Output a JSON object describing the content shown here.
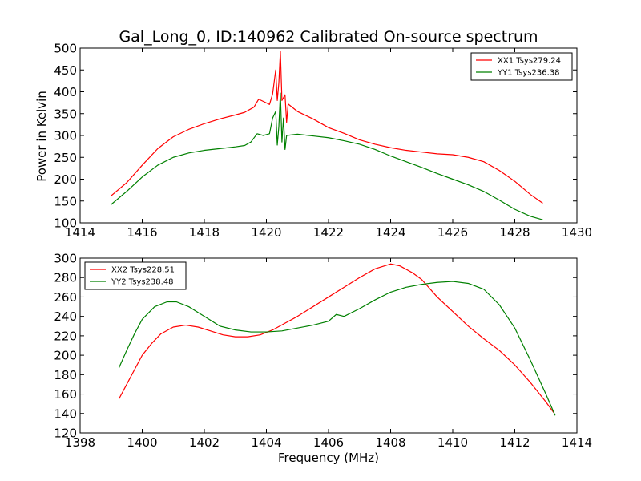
{
  "figure": {
    "title": "Gal_Long_0, ID:140962 Calibrated On-source spectrum",
    "xlabel": "Frequency (MHz)",
    "ylabel": "Power in Kelvin"
  },
  "chart_data": [
    {
      "type": "line",
      "title": "Gal_Long_0, ID:140962 Calibrated On-source spectrum",
      "xlabel": "",
      "ylabel": "Power in Kelvin",
      "xlim": [
        1414,
        1430
      ],
      "ylim": [
        100,
        500
      ],
      "xticks": [
        1414,
        1416,
        1418,
        1420,
        1422,
        1424,
        1426,
        1428,
        1430
      ],
      "yticks": [
        100,
        150,
        200,
        250,
        300,
        350,
        400,
        450,
        500
      ],
      "grid": false,
      "legend": "top-right",
      "series": [
        {
          "name": "XX1 Tsys279.24",
          "color": "#ff0000",
          "points": [
            [
              1415.0,
              162
            ],
            [
              1415.5,
              192
            ],
            [
              1416.0,
              232
            ],
            [
              1416.5,
              270
            ],
            [
              1417.0,
              297
            ],
            [
              1417.5,
              314
            ],
            [
              1418.0,
              327
            ],
            [
              1418.5,
              338
            ],
            [
              1419.0,
              347
            ],
            [
              1419.3,
              353
            ],
            [
              1419.6,
              365
            ],
            [
              1419.75,
              383
            ],
            [
              1419.9,
              378
            ],
            [
              1420.1,
              371
            ],
            [
              1420.2,
              395
            ],
            [
              1420.3,
              450
            ],
            [
              1420.35,
              380
            ],
            [
              1420.4,
              420
            ],
            [
              1420.45,
              493
            ],
            [
              1420.5,
              380
            ],
            [
              1420.6,
              393
            ],
            [
              1420.65,
              330
            ],
            [
              1420.7,
              372
            ],
            [
              1421.0,
              355
            ],
            [
              1421.5,
              338
            ],
            [
              1422.0,
              318
            ],
            [
              1422.5,
              305
            ],
            [
              1423.0,
              290
            ],
            [
              1423.5,
              280
            ],
            [
              1424.0,
              272
            ],
            [
              1424.5,
              266
            ],
            [
              1425.0,
              262
            ],
            [
              1425.5,
              258
            ],
            [
              1426.0,
              256
            ],
            [
              1426.5,
              250
            ],
            [
              1427.0,
              240
            ],
            [
              1427.5,
              220
            ],
            [
              1428.0,
              195
            ],
            [
              1428.5,
              165
            ],
            [
              1428.9,
              145
            ]
          ]
        },
        {
          "name": "YY1 Tsys236.38",
          "color": "#008000",
          "points": [
            [
              1415.0,
              142
            ],
            [
              1415.5,
              172
            ],
            [
              1416.0,
              205
            ],
            [
              1416.5,
              232
            ],
            [
              1417.0,
              250
            ],
            [
              1417.5,
              260
            ],
            [
              1418.0,
              266
            ],
            [
              1418.5,
              270
            ],
            [
              1419.0,
              274
            ],
            [
              1419.3,
              277
            ],
            [
              1419.5,
              285
            ],
            [
              1419.7,
              304
            ],
            [
              1419.9,
              300
            ],
            [
              1420.1,
              304
            ],
            [
              1420.2,
              340
            ],
            [
              1420.3,
              355
            ],
            [
              1420.35,
              278
            ],
            [
              1420.4,
              320
            ],
            [
              1420.45,
              397
            ],
            [
              1420.5,
              285
            ],
            [
              1420.55,
              340
            ],
            [
              1420.6,
              268
            ],
            [
              1420.65,
              300
            ],
            [
              1421.0,
              303
            ],
            [
              1421.5,
              299
            ],
            [
              1422.0,
              295
            ],
            [
              1422.5,
              288
            ],
            [
              1423.0,
              280
            ],
            [
              1423.5,
              268
            ],
            [
              1424.0,
              253
            ],
            [
              1424.5,
              240
            ],
            [
              1425.0,
              227
            ],
            [
              1425.5,
              213
            ],
            [
              1426.0,
              200
            ],
            [
              1426.5,
              187
            ],
            [
              1427.0,
              172
            ],
            [
              1427.5,
              152
            ],
            [
              1428.0,
              131
            ],
            [
              1428.5,
              115
            ],
            [
              1428.9,
              107
            ]
          ]
        }
      ]
    },
    {
      "type": "line",
      "title": "",
      "xlabel": "Frequency (MHz)",
      "ylabel": "",
      "xlim": [
        1398,
        1414
      ],
      "ylim": [
        120,
        300
      ],
      "xticks": [
        1398,
        1400,
        1402,
        1404,
        1406,
        1408,
        1410,
        1412,
        1414
      ],
      "yticks": [
        120,
        140,
        160,
        180,
        200,
        220,
        240,
        260,
        280,
        300
      ],
      "grid": false,
      "legend": "top-left",
      "series": [
        {
          "name": "XX2 Tsys228.51",
          "color": "#ff0000",
          "points": [
            [
              1399.25,
              155
            ],
            [
              1399.5,
              170
            ],
            [
              1399.75,
              185
            ],
            [
              1400.0,
              200
            ],
            [
              1400.3,
              212
            ],
            [
              1400.6,
              222
            ],
            [
              1401.0,
              229
            ],
            [
              1401.4,
              231
            ],
            [
              1401.8,
              229
            ],
            [
              1402.2,
              225
            ],
            [
              1402.6,
              221
            ],
            [
              1403.0,
              219
            ],
            [
              1403.4,
              219
            ],
            [
              1403.8,
              221
            ],
            [
              1404.2,
              226
            ],
            [
              1404.6,
              233
            ],
            [
              1405.0,
              240
            ],
            [
              1405.5,
              250
            ],
            [
              1406.0,
              260
            ],
            [
              1406.5,
              270
            ],
            [
              1407.0,
              280
            ],
            [
              1407.5,
              289
            ],
            [
              1408.0,
              294
            ],
            [
              1408.3,
              292
            ],
            [
              1408.7,
              285
            ],
            [
              1409.0,
              278
            ],
            [
              1409.5,
              260
            ],
            [
              1410.0,
              245
            ],
            [
              1410.5,
              230
            ],
            [
              1411.0,
              217
            ],
            [
              1411.5,
              205
            ],
            [
              1412.0,
              190
            ],
            [
              1412.5,
              172
            ],
            [
              1413.0,
              152
            ],
            [
              1413.25,
              141
            ]
          ]
        },
        {
          "name": "YY2 Tsys238.48",
          "color": "#008000",
          "points": [
            [
              1399.25,
              187
            ],
            [
              1399.5,
              205
            ],
            [
              1399.75,
              222
            ],
            [
              1400.0,
              237
            ],
            [
              1400.4,
              250
            ],
            [
              1400.8,
              255
            ],
            [
              1401.1,
              255
            ],
            [
              1401.5,
              250
            ],
            [
              1402.0,
              240
            ],
            [
              1402.5,
              230
            ],
            [
              1403.0,
              226
            ],
            [
              1403.5,
              224
            ],
            [
              1404.0,
              224
            ],
            [
              1404.5,
              225
            ],
            [
              1405.0,
              228
            ],
            [
              1405.5,
              231
            ],
            [
              1406.0,
              235
            ],
            [
              1406.25,
              242
            ],
            [
              1406.5,
              240
            ],
            [
              1407.0,
              248
            ],
            [
              1407.5,
              257
            ],
            [
              1408.0,
              265
            ],
            [
              1408.5,
              270
            ],
            [
              1409.0,
              273
            ],
            [
              1409.5,
              275
            ],
            [
              1410.0,
              276
            ],
            [
              1410.5,
              274
            ],
            [
              1411.0,
              268
            ],
            [
              1411.5,
              252
            ],
            [
              1412.0,
              228
            ],
            [
              1412.5,
              195
            ],
            [
              1413.0,
              160
            ],
            [
              1413.3,
              138
            ]
          ]
        }
      ]
    }
  ]
}
